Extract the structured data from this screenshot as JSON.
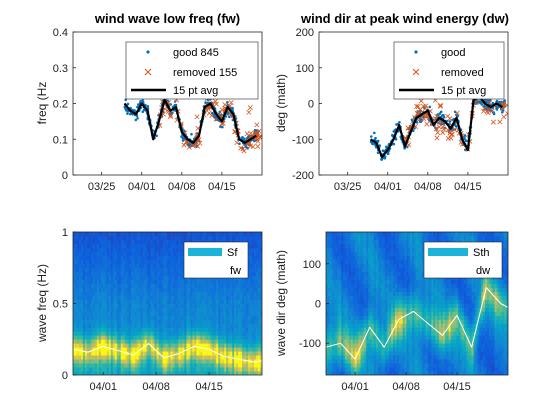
{
  "chart_data": [
    {
      "type": "scatter",
      "title": "wind wave low freq (fw)",
      "ylabel": "freq (Hz",
      "xlabel": "",
      "ylim": [
        0,
        0.4
      ],
      "yticks": [
        0,
        0.1,
        0.2,
        0.3,
        0.4
      ],
      "ytick_labels": [
        "0",
        "0.1",
        "0.2",
        "0.3",
        "0.4"
      ],
      "xlim": [
        "03/20",
        "04/22"
      ],
      "xticks": [
        "03/25",
        "04/01",
        "04/08",
        "04/15"
      ],
      "grid": false,
      "legend_position": "top-right",
      "series": [
        {
          "name": "good 845",
          "marker": "dot",
          "color": "#0072BD"
        },
        {
          "name": "removed 155",
          "marker": "x",
          "color": "#D95319"
        },
        {
          "name": "15 pt avg",
          "marker": "line",
          "color": "#000000"
        }
      ],
      "x": [
        "03/29",
        "03/30",
        "03/31",
        "04/01",
        "04/02",
        "04/03",
        "04/04",
        "04/05",
        "04/06",
        "04/07",
        "04/08",
        "04/09",
        "04/10",
        "04/11",
        "04/12",
        "04/13",
        "04/14",
        "04/15",
        "04/16",
        "04/17",
        "04/18",
        "04/19",
        "04/20",
        "04/21"
      ],
      "avg_values": [
        0.2,
        0.18,
        0.17,
        0.2,
        0.18,
        0.1,
        0.15,
        0.21,
        0.18,
        0.19,
        0.12,
        0.1,
        0.09,
        0.11,
        0.19,
        0.2,
        0.17,
        0.15,
        0.19,
        0.17,
        0.1,
        0.09,
        0.1,
        0.11
      ]
    },
    {
      "type": "scatter",
      "title": "wind dir at peak wind energy (dw)",
      "ylabel": "deg (math)",
      "xlabel": "",
      "ylim": [
        -200,
        200
      ],
      "yticks": [
        -200,
        -100,
        0,
        100,
        200
      ],
      "ytick_labels": [
        "-200",
        "-100",
        "0",
        "100",
        "200"
      ],
      "xlim": [
        "03/20",
        "04/22"
      ],
      "xticks": [
        "03/25",
        "04/01",
        "04/08",
        "04/15"
      ],
      "grid": false,
      "legend_position": "top-right",
      "series": [
        {
          "name": "good",
          "marker": "dot",
          "color": "#0072BD"
        },
        {
          "name": "removed",
          "marker": "x",
          "color": "#D95319"
        },
        {
          "name": "15 pt avg",
          "marker": "line",
          "color": "#000000"
        }
      ],
      "x": [
        "03/29",
        "03/30",
        "03/31",
        "04/01",
        "04/02",
        "04/03",
        "04/04",
        "04/05",
        "04/06",
        "04/07",
        "04/08",
        "04/09",
        "04/10",
        "04/11",
        "04/12",
        "04/13",
        "04/14",
        "04/15",
        "04/16",
        "04/17",
        "04/18",
        "04/19",
        "04/20",
        "04/21"
      ],
      "avg_values": [
        -100,
        -110,
        -150,
        -130,
        -100,
        -60,
        -120,
        -80,
        -40,
        -30,
        -20,
        -60,
        -40,
        -50,
        -70,
        -40,
        -100,
        -130,
        10,
        20,
        0,
        -10,
        0,
        -10
      ]
    },
    {
      "type": "heatmap",
      "title": "",
      "ylabel": "wave freq (Hz)",
      "xlabel": "",
      "ylim": [
        0,
        1
      ],
      "yticks": [
        0,
        0.5,
        1
      ],
      "ytick_labels": [
        "0",
        "0.5",
        "1"
      ],
      "xlim": [
        "03/28",
        "04/22"
      ],
      "xticks": [
        "04/01",
        "04/08",
        "04/15"
      ],
      "legend_position": "top-right",
      "legend": [
        {
          "name": "Sf",
          "marker": "patch",
          "color": "#1AB3D9"
        },
        {
          "name": "fw",
          "marker": "line",
          "color": "#ffffff"
        }
      ],
      "overlay_x": [
        "03/28",
        "03/30",
        "04/01",
        "04/03",
        "04/05",
        "04/07",
        "04/09",
        "04/11",
        "04/13",
        "04/15",
        "04/17",
        "04/19",
        "04/21",
        "04/22"
      ],
      "overlay_values": [
        0.18,
        0.16,
        0.2,
        0.17,
        0.14,
        0.22,
        0.12,
        0.15,
        0.2,
        0.18,
        0.13,
        0.11,
        0.09,
        0.1
      ]
    },
    {
      "type": "heatmap",
      "title": "",
      "ylabel": "wave dir deg (math)",
      "xlabel": "",
      "ylim": [
        -180,
        180
      ],
      "yticks": [
        -100,
        0,
        100
      ],
      "ytick_labels": [
        "-100",
        "0",
        "100"
      ],
      "xlim": [
        "03/28",
        "04/22"
      ],
      "xticks": [
        "04/01",
        "04/08",
        "04/15"
      ],
      "legend_position": "top-right",
      "legend": [
        {
          "name": "Sth",
          "marker": "patch",
          "color": "#1AB3D9"
        },
        {
          "name": "dw",
          "marker": "line",
          "color": "#ffffff"
        }
      ],
      "overlay_x": [
        "03/28",
        "03/30",
        "04/01",
        "04/03",
        "04/05",
        "04/07",
        "04/09",
        "04/11",
        "04/13",
        "04/15",
        "04/17",
        "04/19",
        "04/21",
        "04/22"
      ],
      "overlay_values": [
        -110,
        -100,
        -140,
        -60,
        -110,
        -40,
        -20,
        -50,
        -80,
        -30,
        -110,
        40,
        0,
        -10
      ]
    }
  ]
}
